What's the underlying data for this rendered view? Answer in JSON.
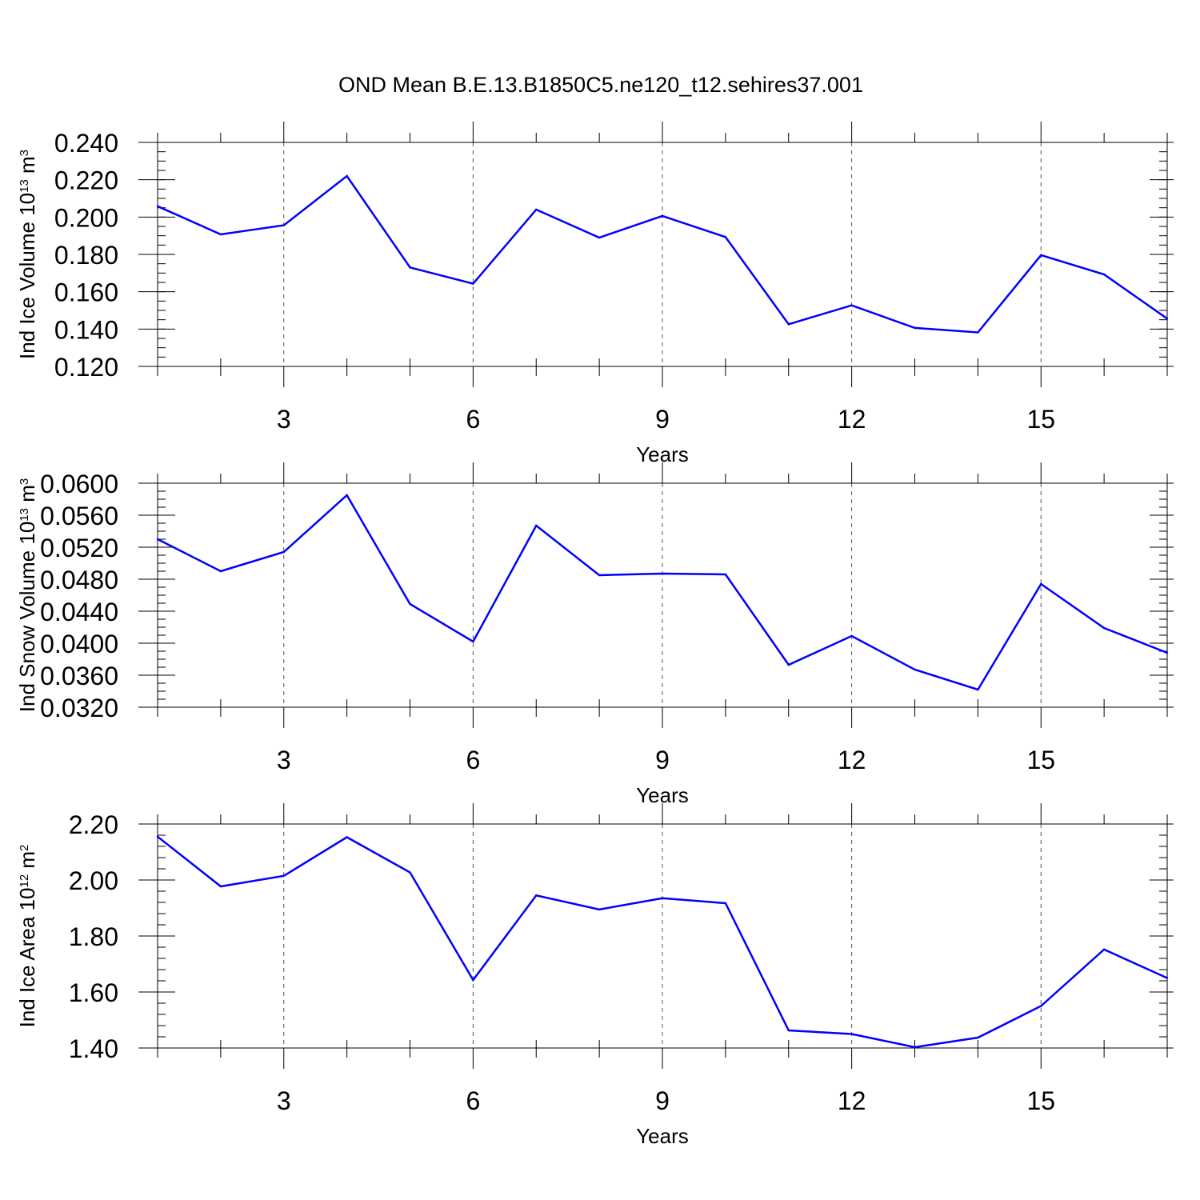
{
  "title": "OND Mean B.E.13.B1850C5.ne120_t12.sehires37.001",
  "colors": {
    "line": "#0000ff",
    "axis": "#000000",
    "grid": "#555555"
  },
  "chart_data": [
    {
      "type": "line",
      "xlabel": "Years",
      "ylabel": {
        "text": "Ind Ice Volume 10",
        "sup": "13",
        "unit": " m",
        "unit_sup": "3"
      },
      "xlim": [
        1,
        17
      ],
      "ylim": [
        0.12,
        0.24
      ],
      "x_ticks": [
        3,
        6,
        9,
        12,
        15
      ],
      "x_tick_labels": [
        "3",
        "6",
        "9",
        "12",
        "15"
      ],
      "y_ticks": [
        0.12,
        0.14,
        0.16,
        0.18,
        0.2,
        0.22,
        0.24
      ],
      "y_tick_labels": [
        "0.120",
        "0.140",
        "0.160",
        "0.180",
        "0.200",
        "0.220",
        "0.240"
      ],
      "y_minor_step": 0.005,
      "grid": "x-dashed",
      "series": [
        {
          "name": "Ind Ice Volume",
          "x": [
            1,
            2,
            3,
            4,
            5,
            6,
            7,
            8,
            9,
            10,
            11,
            12,
            13,
            14,
            15,
            16,
            17
          ],
          "values": [
            0.2058,
            0.1907,
            0.1956,
            0.222,
            0.173,
            0.1643,
            0.204,
            0.189,
            0.2006,
            0.1893,
            0.1426,
            0.1527,
            0.1406,
            0.1382,
            0.1796,
            0.1693,
            0.1456
          ]
        }
      ]
    },
    {
      "type": "line",
      "xlabel": "Years",
      "ylabel": {
        "text": "Ind Snow Volume 10",
        "sup": "13",
        "unit": " m",
        "unit_sup": "3"
      },
      "xlim": [
        1,
        17
      ],
      "ylim": [
        0.032,
        0.06
      ],
      "x_ticks": [
        3,
        6,
        9,
        12,
        15
      ],
      "x_tick_labels": [
        "3",
        "6",
        "9",
        "12",
        "15"
      ],
      "y_ticks": [
        0.032,
        0.036,
        0.04,
        0.044,
        0.048,
        0.052,
        0.056,
        0.06
      ],
      "y_tick_labels": [
        "0.0320",
        "0.0360",
        "0.0400",
        "0.0440",
        "0.0480",
        "0.0520",
        "0.0560",
        "0.0600"
      ],
      "y_minor_step": 0.001,
      "grid": "x-dashed",
      "series": [
        {
          "name": "Ind Snow Volume",
          "x": [
            1,
            2,
            3,
            4,
            5,
            6,
            7,
            8,
            9,
            10,
            11,
            12,
            13,
            14,
            15,
            16,
            17
          ],
          "values": [
            0.053,
            0.049,
            0.0514,
            0.0585,
            0.0449,
            0.0402,
            0.0547,
            0.0485,
            0.0487,
            0.0486,
            0.0373,
            0.0409,
            0.0367,
            0.0342,
            0.0474,
            0.0419,
            0.0388
          ]
        }
      ]
    },
    {
      "type": "line",
      "xlabel": "Years",
      "ylabel": {
        "text": "Ind Ice Area 10",
        "sup": "12",
        "unit": " m",
        "unit_sup": "2"
      },
      "xlim": [
        1,
        17
      ],
      "ylim": [
        1.4,
        2.2
      ],
      "x_ticks": [
        3,
        6,
        9,
        12,
        15
      ],
      "x_tick_labels": [
        "3",
        "6",
        "9",
        "12",
        "15"
      ],
      "y_ticks": [
        1.4,
        1.6,
        1.8,
        2.0,
        2.2
      ],
      "y_tick_labels": [
        "1.40",
        "1.60",
        "1.80",
        "2.00",
        "2.20"
      ],
      "y_minor_step": 0.04,
      "grid": "x-dashed",
      "series": [
        {
          "name": "Ind Ice Area",
          "x": [
            1,
            2,
            3,
            4,
            5,
            6,
            7,
            8,
            9,
            10,
            11,
            12,
            13,
            14,
            15,
            16,
            17
          ],
          "values": [
            2.155,
            1.977,
            2.015,
            2.153,
            2.027,
            1.643,
            1.945,
            1.895,
            1.935,
            1.917,
            1.463,
            1.45,
            1.403,
            1.437,
            1.55,
            1.752,
            1.65
          ]
        }
      ]
    }
  ]
}
